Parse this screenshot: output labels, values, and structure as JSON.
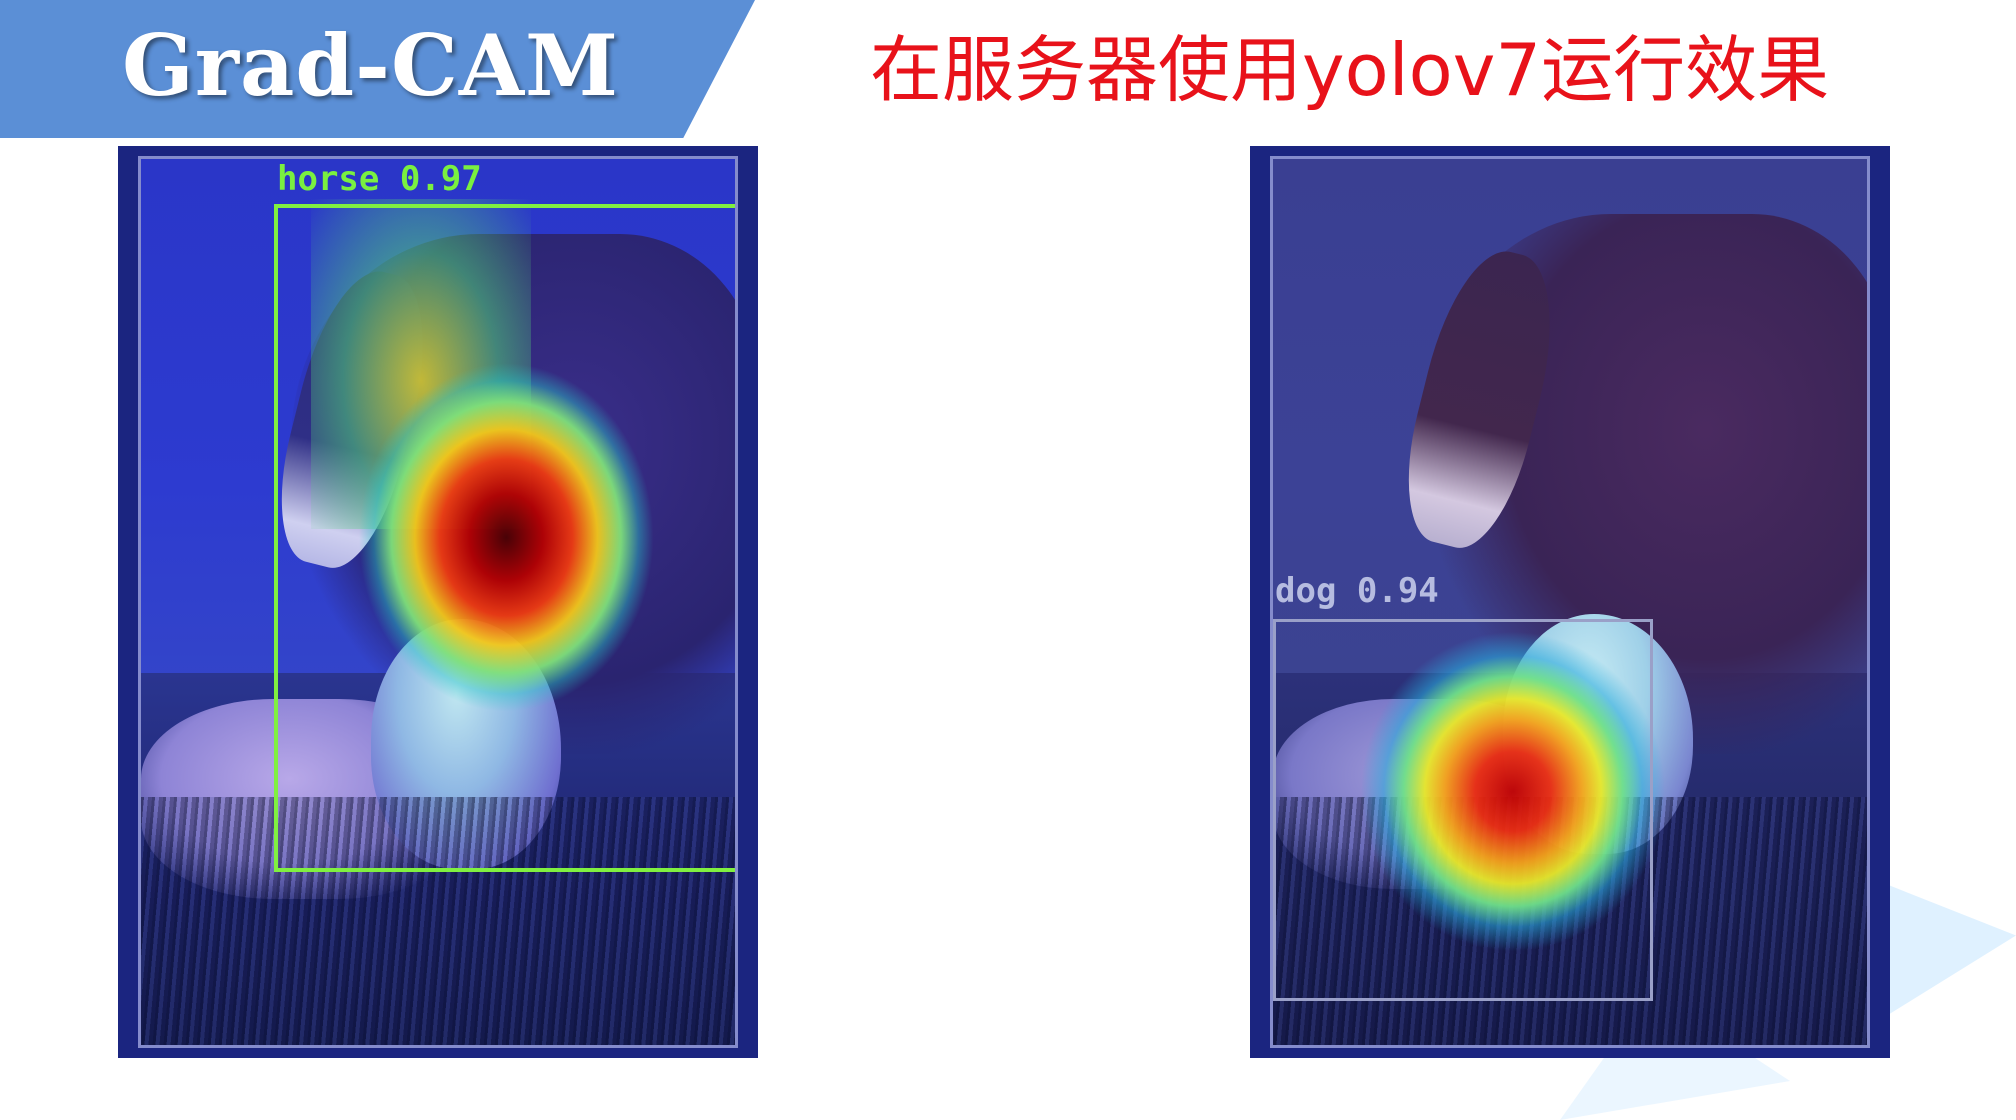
{
  "header": {
    "title": "Grad-CAM",
    "subtitle": "在服务器使用yolov7运行效果"
  },
  "panels": [
    {
      "detection_label": "horse 0.97",
      "box_color": "#80f040"
    },
    {
      "detection_label": "dog 0.94",
      "box_color": "#9aa0c8"
    }
  ],
  "colors": {
    "banner": "#5b8fd6",
    "subtitle": "#e8121a"
  }
}
